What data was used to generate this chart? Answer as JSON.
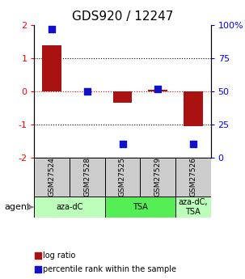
{
  "title": "GDS920 / 12247",
  "samples": [
    "GSM27524",
    "GSM27528",
    "GSM27525",
    "GSM27529",
    "GSM27526"
  ],
  "log_ratios": [
    1.4,
    0.0,
    -0.35,
    0.05,
    -1.05
  ],
  "percentiles": [
    97,
    50,
    10,
    52,
    10
  ],
  "ylim_left": [
    -2,
    2
  ],
  "ylim_right": [
    0,
    100
  ],
  "yticks_left": [
    -2,
    -1,
    0,
    1,
    2
  ],
  "ytick_labels_left": [
    "-2",
    "-1",
    "0",
    "1",
    "2"
  ],
  "yticks_right": [
    0,
    25,
    50,
    75,
    100
  ],
  "ytick_labels_right": [
    "0",
    "25",
    "50",
    "75",
    "100%"
  ],
  "bar_color": "#aa1111",
  "dot_color": "#1111cc",
  "agent_groups": [
    {
      "label": "aza-dC",
      "count": 2,
      "color": "#bbffbb"
    },
    {
      "label": "TSA",
      "count": 2,
      "color": "#55ee55"
    },
    {
      "label": "aza-dC,\nTSA",
      "count": 1,
      "color": "#bbffbb"
    }
  ],
  "legend_bar_label": "log ratio",
  "legend_dot_label": "percentile rank within the sample",
  "agent_label": "agent",
  "sample_box_color": "#cccccc",
  "bar_width": 0.55,
  "dot_size": 35
}
